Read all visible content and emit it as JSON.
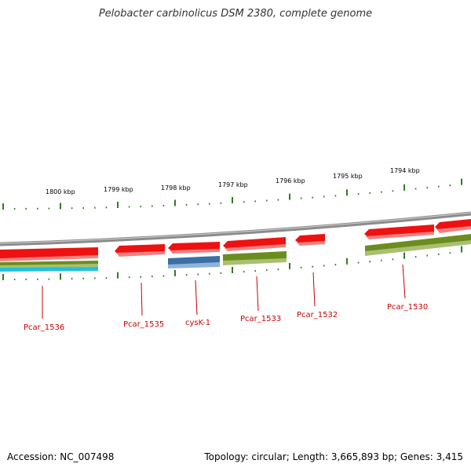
{
  "title": "Pelobacter carbinolicus DSM 2380, complete genome",
  "footer": {
    "accession": "Accession: NC_007498",
    "summary": "Topology: circular; Length: 3,665,893 bp; Genes: 3,415"
  },
  "colors": {
    "tick": "#2e7d1e",
    "backbone": "#8c8c8c",
    "gene_red": "#ee1111",
    "gene_olive": "#6b8c1f",
    "gene_blue": "#3a6ea5",
    "gene_cyan": "#22c0dd",
    "label": "#cc0000"
  },
  "scale_labels": [
    "1800 kbp",
    "1799 kbp",
    "1798 kbp",
    "1797 kbp",
    "1796 kbp",
    "1795 kbp",
    "1794 kbp"
  ],
  "gene_labels": [
    "Pcar_1536",
    "Pcar_1535",
    "cysK-1",
    "Pcar_1533",
    "Pcar_1532",
    "Pcar_1530"
  ]
}
